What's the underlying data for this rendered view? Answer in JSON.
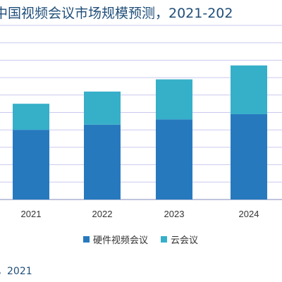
{
  "chart_data": {
    "type": "bar",
    "stacked": true,
    "title": "中国视频会议市场规模预测，2021-202",
    "categories": [
      "2021",
      "2022",
      "2023",
      "2024"
    ],
    "series": [
      {
        "name": "硬件视频会议",
        "color": "#2779be",
        "values": [
          40,
          43,
          46,
          49
        ]
      },
      {
        "name": "云会议",
        "color": "#36afc9",
        "values": [
          15,
          19,
          23,
          28
        ]
      }
    ],
    "ylim": [
      0,
      100
    ],
    "grid": true,
    "legend_position": "bottom"
  },
  "source_text": "，2021"
}
